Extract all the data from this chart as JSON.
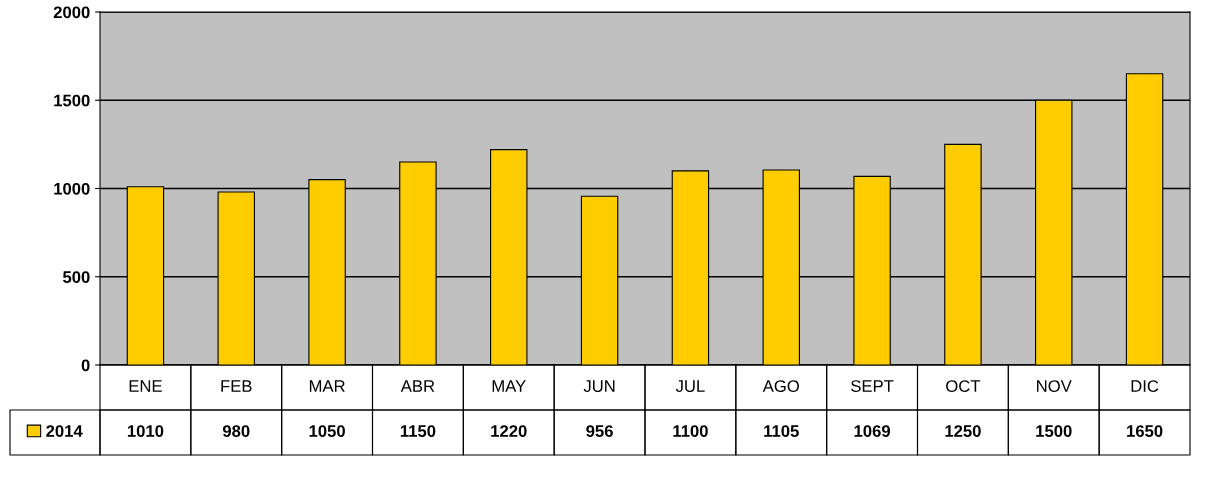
{
  "chart_data": {
    "type": "bar",
    "categories": [
      "ENE",
      "FEB",
      "MAR",
      "ABR",
      "MAY",
      "JUN",
      "JUL",
      "AGO",
      "SEPT",
      "OCT",
      "NOV",
      "DIC"
    ],
    "series": [
      {
        "name": "2014",
        "color": "#ffcc00",
        "values": [
          1010,
          980,
          1050,
          1150,
          1220,
          956,
          1100,
          1105,
          1069,
          1250,
          1500,
          1650
        ]
      }
    ],
    "ylim": [
      0,
      2000
    ],
    "yticks": [
      0,
      500,
      1000,
      1500,
      2000
    ],
    "grid": "y",
    "data_labels": true,
    "legend": "bottom left"
  }
}
